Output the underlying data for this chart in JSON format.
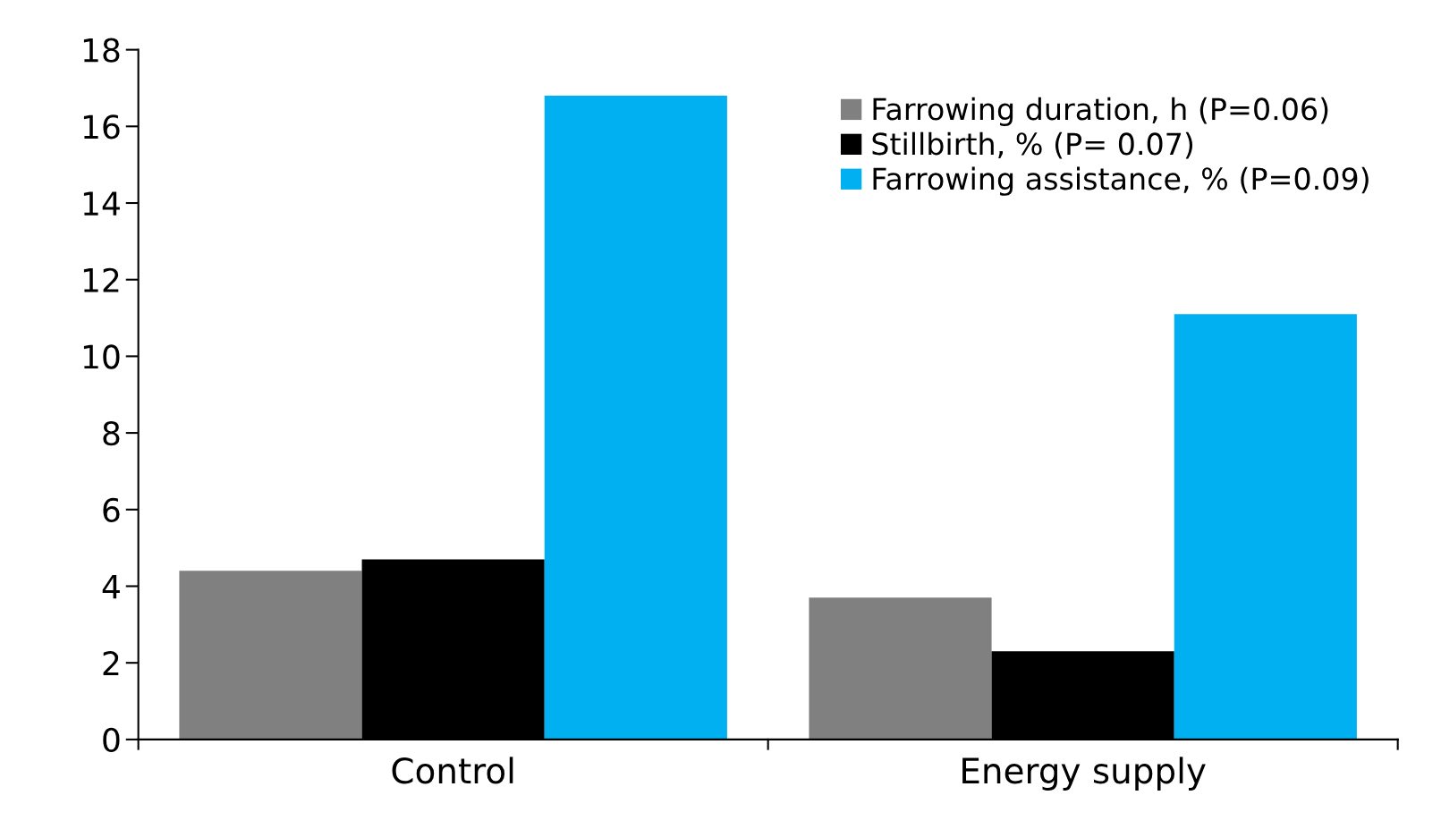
{
  "chart_data": {
    "type": "bar",
    "categories": [
      "Control",
      "Energy supply"
    ],
    "series": [
      {
        "name": "Farrowing duration, h (P=0.06)",
        "color": "#808080",
        "values": [
          4.4,
          3.7
        ]
      },
      {
        "name": "Stillbirth, % (P= 0.07)",
        "color": "#000000",
        "values": [
          4.7,
          2.3
        ]
      },
      {
        "name": "Farrowing assistance, % (P=0.09)",
        "color": "#00b0f0",
        "values": [
          16.8,
          11.1
        ]
      }
    ],
    "ylim": [
      0,
      18
    ],
    "yticks": [
      0,
      2,
      4,
      6,
      8,
      10,
      12,
      14,
      16,
      18
    ],
    "grid": false,
    "legend": "top right"
  }
}
